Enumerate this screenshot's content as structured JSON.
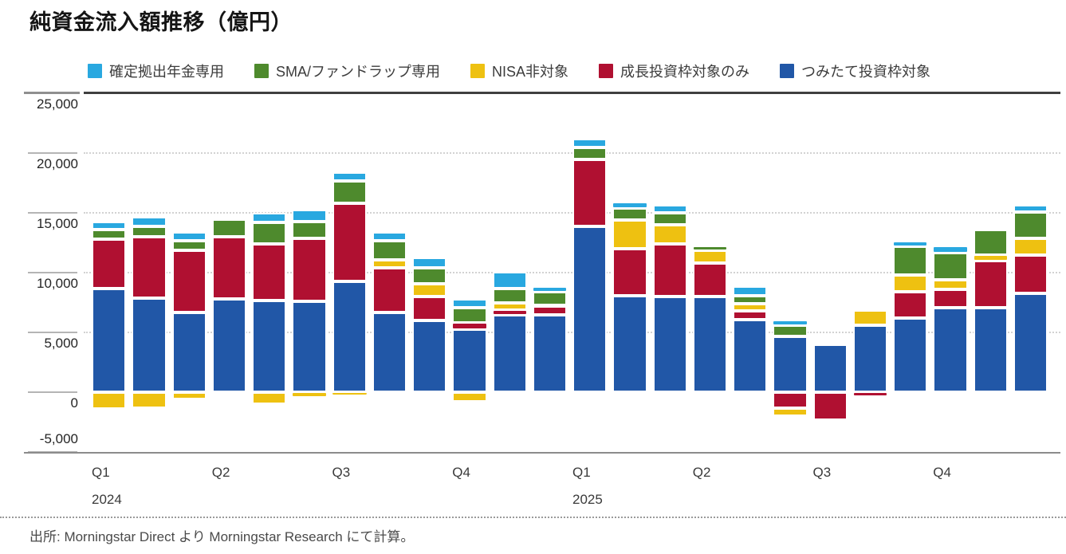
{
  "title": "純資金流入額推移（億円）",
  "source": "出所: Morningstar Direct より Morningstar Research にて計算。",
  "chart_data": {
    "type": "bar",
    "variant": "stacked-monthly",
    "title": "純資金流入額推移（億円）",
    "unit": "億円",
    "grid": "horizontal dotted every 5,000",
    "legend_position": "top",
    "categories": [
      "2024-01",
      "2024-02",
      "2024-03",
      "2024-04",
      "2024-05",
      "2024-06",
      "2024-07",
      "2024-08",
      "2024-09",
      "2024-10",
      "2024-11",
      "2024-12",
      "2025-01",
      "2025-02",
      "2025-03",
      "2025-04",
      "2025-05",
      "2025-06",
      "2025-07",
      "2025-08",
      "2025-09",
      "2025-10",
      "2025-11",
      "2025-12"
    ],
    "series": [
      {
        "name": "つみたて投資枠対象",
        "color": "#2157A7",
        "values": [
          8700,
          7900,
          6700,
          7800,
          7700,
          7600,
          9300,
          6700,
          6000,
          5300,
          6500,
          6500,
          13900,
          8100,
          8000,
          8000,
          6100,
          4700,
          4000,
          5600,
          6200,
          7100,
          7100,
          8300
        ]
      },
      {
        "name": "成長投資枠対象のみ",
        "color": "#B01031",
        "values": [
          4100,
          5100,
          5200,
          5200,
          4700,
          5300,
          6500,
          3700,
          2000,
          500,
          400,
          700,
          5600,
          3900,
          4400,
          2800,
          700,
          -1300,
          -2300,
          -300,
          2200,
          1500,
          3900,
          3200
        ]
      },
      {
        "name": "NISA非対象",
        "color": "#EEC111",
        "values": [
          -1400,
          -1300,
          -600,
          0,
          -1000,
          -400,
          -200,
          700,
          1100,
          -800,
          600,
          100,
          0,
          2400,
          1600,
          1100,
          600,
          -700,
          0,
          1300,
          1400,
          800,
          500,
          1400
        ]
      },
      {
        "name": "SMA/ファンドラップ専用",
        "color": "#4E8A2D",
        "values": [
          800,
          900,
          800,
          1500,
          1800,
          1400,
          1900,
          1600,
          1300,
          1300,
          1200,
          1100,
          1000,
          1000,
          1000,
          300,
          700,
          900,
          0,
          0,
          2400,
          2300,
          2100,
          2200
        ]
      },
      {
        "name": "確定拠出年金専用",
        "color": "#29A8E0",
        "values": [
          700,
          800,
          700,
          0,
          800,
          1000,
          700,
          700,
          900,
          700,
          1400,
          400,
          700,
          500,
          700,
          0,
          800,
          400,
          0,
          0,
          400,
          500,
          0,
          600
        ]
      }
    ],
    "stack_order": "bottom_to_top",
    "y_axis": {
      "min": -5000,
      "max": 25000,
      "step": 5000,
      "ticks": [
        25000,
        20000,
        15000,
        10000,
        5000,
        0,
        -5000
      ],
      "tick_labels": [
        "25,000",
        "20,000",
        "15,000",
        "10,000",
        "5,000",
        "0",
        "-5,000"
      ]
    },
    "x_axis": {
      "quarters": [
        {
          "label": "Q1",
          "year": "2024",
          "bar_index": 0
        },
        {
          "label": "Q2",
          "year": "",
          "bar_index": 3
        },
        {
          "label": "Q3",
          "year": "",
          "bar_index": 6
        },
        {
          "label": "Q4",
          "year": "",
          "bar_index": 9
        },
        {
          "label": "Q1",
          "year": "2025",
          "bar_index": 12
        },
        {
          "label": "Q2",
          "year": "",
          "bar_index": 15
        },
        {
          "label": "Q3",
          "year": "",
          "bar_index": 18
        },
        {
          "label": "Q4",
          "year": "",
          "bar_index": 21
        }
      ]
    }
  }
}
